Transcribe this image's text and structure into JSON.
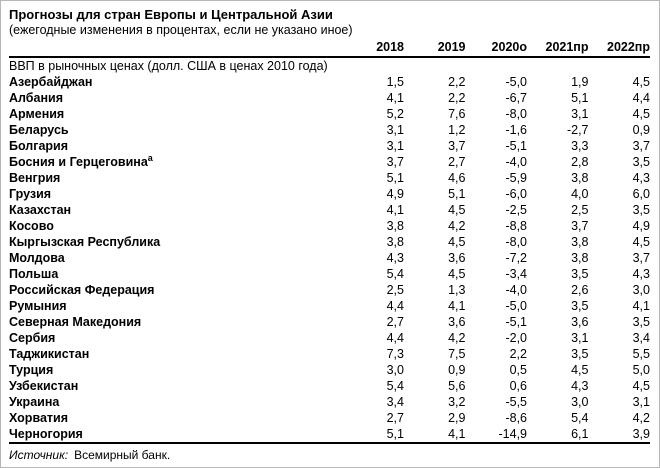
{
  "page": {
    "title": "Прогнозы для стран Европы и Центральной Азии",
    "subtitle": "(ежегодные изменения в процентах, если не указано иное)"
  },
  "table": {
    "section_header": "ВВП в рыночных ценах (долл. США в ценах 2010 года)",
    "columns": [
      "2018",
      "2019",
      "2020о",
      "2021пр",
      "2022пр"
    ],
    "rows": [
      {
        "name": "Азербайджан",
        "footnote": "",
        "values": [
          "1,5",
          "2,2",
          "-5,0",
          "1,9",
          "4,5"
        ]
      },
      {
        "name": "Албания",
        "footnote": "",
        "values": [
          "4,1",
          "2,2",
          "-6,7",
          "5,1",
          "4,4"
        ]
      },
      {
        "name": "Армения",
        "footnote": "",
        "values": [
          "5,2",
          "7,6",
          "-8,0",
          "3,1",
          "4,5"
        ]
      },
      {
        "name": "Беларусь",
        "footnote": "",
        "values": [
          "3,1",
          "1,2",
          "-1,6",
          "-2,7",
          "0,9"
        ]
      },
      {
        "name": "Болгария",
        "footnote": "",
        "values": [
          "3,1",
          "3,7",
          "-5,1",
          "3,3",
          "3,7"
        ]
      },
      {
        "name": "Босния и Герцеговина",
        "footnote": "a",
        "values": [
          "3,7",
          "2,7",
          "-4,0",
          "2,8",
          "3,5"
        ]
      },
      {
        "name": "Венгрия",
        "footnote": "",
        "values": [
          "5,1",
          "4,6",
          "-5,9",
          "3,8",
          "4,3"
        ]
      },
      {
        "name": "Грузия",
        "footnote": "",
        "values": [
          "4,9",
          "5,1",
          "-6,0",
          "4,0",
          "6,0"
        ]
      },
      {
        "name": "Казахстан",
        "footnote": "",
        "values": [
          "4,1",
          "4,5",
          "-2,5",
          "2,5",
          "3,5"
        ]
      },
      {
        "name": "Косово",
        "footnote": "",
        "values": [
          "3,8",
          "4,2",
          "-8,8",
          "3,7",
          "4,9"
        ]
      },
      {
        "name": "Кыргызская Республика",
        "footnote": "",
        "values": [
          "3,8",
          "4,5",
          "-8,0",
          "3,8",
          "4,5"
        ]
      },
      {
        "name": "Молдова",
        "footnote": "",
        "values": [
          "4,3",
          "3,6",
          "-7,2",
          "3,8",
          "3,7"
        ]
      },
      {
        "name": "Польша",
        "footnote": "",
        "values": [
          "5,4",
          "4,5",
          "-3,4",
          "3,5",
          "4,3"
        ]
      },
      {
        "name": "Российская Федерация",
        "footnote": "",
        "values": [
          "2,5",
          "1,3",
          "-4,0",
          "2,6",
          "3,0"
        ]
      },
      {
        "name": "Румыния",
        "footnote": "",
        "values": [
          "4,4",
          "4,1",
          "-5,0",
          "3,5",
          "4,1"
        ]
      },
      {
        "name": "Северная Македония",
        "footnote": "",
        "values": [
          "2,7",
          "3,6",
          "-5,1",
          "3,6",
          "3,5"
        ]
      },
      {
        "name": "Сербия",
        "footnote": "",
        "values": [
          "4,4",
          "4,2",
          "-2,0",
          "3,1",
          "3,4"
        ]
      },
      {
        "name": "Таджикистан",
        "footnote": "",
        "values": [
          "7,3",
          "7,5",
          "2,2",
          "3,5",
          "5,5"
        ]
      },
      {
        "name": "Турция",
        "footnote": "",
        "values": [
          "3,0",
          "0,9",
          "0,5",
          "4,5",
          "5,0"
        ]
      },
      {
        "name": "Узбекистан",
        "footnote": "",
        "values": [
          "5,4",
          "5,6",
          "0,6",
          "4,3",
          "4,5"
        ]
      },
      {
        "name": "Украина",
        "footnote": "",
        "values": [
          "3,4",
          "3,2",
          "-5,5",
          "3,0",
          "3,1"
        ]
      },
      {
        "name": "Хорватия",
        "footnote": "",
        "values": [
          "2,7",
          "2,9",
          "-8,6",
          "5,4",
          "4,2"
        ]
      },
      {
        "name": "Черногория",
        "footnote": "",
        "values": [
          "5,1",
          "4,1",
          "-14,9",
          "6,1",
          "3,9"
        ]
      }
    ]
  },
  "source": {
    "label": "Источник:",
    "text": "Всемирный банк."
  }
}
